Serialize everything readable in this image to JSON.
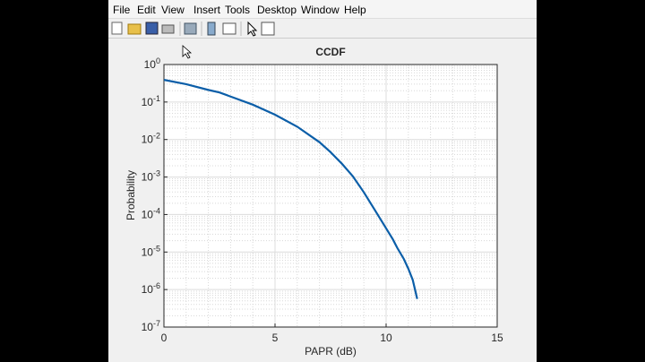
{
  "menu": [
    "File",
    "Edit",
    "View",
    "Insert",
    "Tools",
    "Desktop",
    "Window",
    "Help"
  ],
  "chart_data": {
    "type": "line",
    "title": "CCDF",
    "xlabel": "PAPR (dB)",
    "ylabel": "Probability",
    "x": [
      0,
      1,
      2,
      2.5,
      3,
      4,
      5,
      6,
      7,
      7.5,
      8,
      8.5,
      9,
      9.5,
      10,
      10.3,
      10.5,
      10.8,
      11,
      11.2,
      11.4
    ],
    "values": [
      0.39,
      0.3,
      0.21,
      0.18,
      0.14,
      0.085,
      0.046,
      0.022,
      0.0085,
      0.0046,
      0.0023,
      0.00105,
      0.00039,
      0.00013,
      4.3e-05,
      2.2e-05,
      1.3e-05,
      6.5e-06,
      3.6e-06,
      1.8e-06,
      5.6e-07
    ],
    "color": "#0b5ea8",
    "xlim": [
      0,
      15
    ],
    "xticks": [
      0,
      5,
      10,
      15
    ],
    "ylim": [
      1e-07,
      1
    ],
    "log_y": true,
    "yticks": [
      {
        "value": 1,
        "label": "10^0"
      },
      {
        "value": 0.1,
        "label": "10^-1"
      },
      {
        "value": 0.01,
        "label": "10^-2"
      },
      {
        "value": 0.001,
        "label": "10^-3"
      },
      {
        "value": 0.0001,
        "label": "10^-4"
      },
      {
        "value": 1e-05,
        "label": "10^-5"
      },
      {
        "value": 1e-06,
        "label": "10^-6"
      },
      {
        "value": 1e-07,
        "label": "10^-7"
      }
    ],
    "grid": true,
    "minor_grid": true
  }
}
